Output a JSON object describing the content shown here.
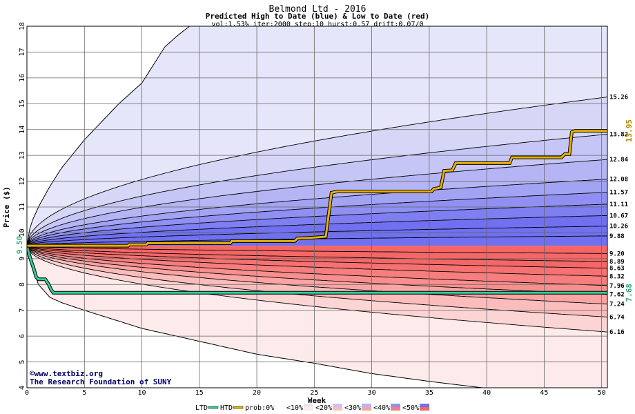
{
  "chart_data": {
    "type": "area",
    "title": "Belmond Ltd - 2016",
    "subtitle": "Predicted High to Date (blue) &  Low to Date (red)",
    "params": "vol:1.53% iter:2000 step:10 hurst:0.57 drift:0.07/0",
    "xlabel": "Week",
    "ylabel": "Price ($)",
    "xlim": [
      0,
      50.5
    ],
    "ylim": [
      4,
      18
    ],
    "x_ticks": [
      0,
      5,
      10,
      15,
      20,
      25,
      30,
      35,
      40,
      45,
      50
    ],
    "y_ticks": [
      4,
      5,
      6,
      7,
      8,
      9,
      10,
      11,
      12,
      13,
      14,
      15,
      16,
      17,
      18
    ],
    "grid": true,
    "start_price": 9.5,
    "start_label": "9.50",
    "high_outer": [
      [
        0,
        9.5
      ],
      [
        0.3,
        10.3
      ],
      [
        1,
        11.0
      ],
      [
        2,
        11.8
      ],
      [
        3,
        12.5
      ],
      [
        5,
        13.6
      ],
      [
        8,
        15.0
      ],
      [
        10,
        15.8
      ],
      [
        12,
        17.2
      ],
      [
        13,
        17.6
      ],
      [
        15,
        18.3
      ],
      [
        16,
        18.6
      ]
    ],
    "low_outer": [
      [
        0,
        9.5
      ],
      [
        0.3,
        8.9
      ],
      [
        1,
        8.0
      ],
      [
        2,
        7.5
      ],
      [
        3,
        7.3
      ],
      [
        5,
        7.0
      ],
      [
        10,
        6.3
      ],
      [
        15,
        5.8
      ],
      [
        20,
        5.3
      ],
      [
        25,
        4.95
      ],
      [
        30,
        4.55
      ],
      [
        35,
        4.25
      ],
      [
        40,
        3.98
      ],
      [
        43,
        3.88
      ]
    ],
    "high_quantiles": [
      {
        "label": "15.26",
        "value": 15.26
      },
      {
        "label": "13.82",
        "value": 13.82
      },
      {
        "label": "12.84",
        "value": 12.84
      },
      {
        "label": "12.08",
        "value": 12.08
      },
      {
        "label": "11.57",
        "value": 11.57
      },
      {
        "label": "11.11",
        "value": 11.11
      },
      {
        "label": "10.67",
        "value": 10.67
      },
      {
        "label": "10.26",
        "value": 10.26
      },
      {
        "label": "9.88",
        "value": 9.88
      }
    ],
    "low_quantiles": [
      {
        "label": "9.20",
        "value": 9.2
      },
      {
        "label": "8.89",
        "value": 8.89
      },
      {
        "label": "8.63",
        "value": 8.63
      },
      {
        "label": "8.32",
        "value": 8.32
      },
      {
        "label": "7.96",
        "value": 7.96
      },
      {
        "label": "7.62",
        "value": 7.62
      },
      {
        "label": "7.24",
        "value": 7.24
      },
      {
        "label": "6.74",
        "value": 6.74
      },
      {
        "label": "6.16",
        "value": 6.16
      }
    ],
    "high_band_colors": [
      "#e6e6fa",
      "#d6d6f7",
      "#c6c6f6",
      "#b5b5f5",
      "#a3a3f4",
      "#9090f3",
      "#7f7ff1",
      "#7070f0"
    ],
    "low_band_colors": [
      "#fdeaea",
      "#fcd4d4",
      "#fbbcbc",
      "#faa4a4",
      "#f98e8e",
      "#f77e7e",
      "#f67171",
      "#f46767"
    ],
    "htd_series": {
      "name": "HTD",
      "color": "#e8b000",
      "end_label": "13.95",
      "points": [
        [
          0,
          9.5
        ],
        [
          8.8,
          9.5
        ],
        [
          8.9,
          9.55
        ],
        [
          10.4,
          9.55
        ],
        [
          10.5,
          9.6
        ],
        [
          17.7,
          9.6
        ],
        [
          17.8,
          9.68
        ],
        [
          23.3,
          9.68
        ],
        [
          23.5,
          9.78
        ],
        [
          25,
          9.82
        ],
        [
          26,
          9.85
        ],
        [
          26.5,
          11.55
        ],
        [
          27,
          11.6
        ],
        [
          35.2,
          11.6
        ],
        [
          35.4,
          11.7
        ],
        [
          36,
          11.75
        ],
        [
          36.3,
          12.4
        ],
        [
          37,
          12.42
        ],
        [
          37.3,
          12.7
        ],
        [
          42,
          12.7
        ],
        [
          42.2,
          12.92
        ],
        [
          46.5,
          12.92
        ],
        [
          46.8,
          13.05
        ],
        [
          47.2,
          13.05
        ],
        [
          47.4,
          13.9
        ],
        [
          47.7,
          13.95
        ],
        [
          50.5,
          13.95
        ]
      ]
    },
    "ltd_series": {
      "name": "LTD",
      "color": "#33cc99",
      "end_label": "7.68",
      "points": [
        [
          0,
          9.5
        ],
        [
          0.3,
          9.0
        ],
        [
          0.6,
          8.6
        ],
        [
          0.8,
          8.3
        ],
        [
          1.0,
          8.2
        ],
        [
          1.6,
          8.2
        ],
        [
          1.9,
          8.0
        ],
        [
          2.1,
          7.8
        ],
        [
          2.3,
          7.68
        ],
        [
          50.5,
          7.68
        ]
      ]
    }
  },
  "watermark": {
    "site": "©www.textbiz.org",
    "org": "The Research Foundation of SUNY"
  },
  "legend": {
    "items": [
      {
        "label": "LTD",
        "type": "line",
        "color": "#33cc99"
      },
      {
        "label": "HTD",
        "type": "line",
        "color": "#e8b000"
      },
      {
        "label": "prob:0%",
        "type": "swatch",
        "colors": [
          "#ffffff",
          "#ffffff"
        ]
      },
      {
        "label": "<10%",
        "type": "swatch",
        "colors": [
          "#e6e6fa",
          "#fdeaea"
        ]
      },
      {
        "label": "<20%",
        "type": "swatch",
        "colors": [
          "#c6c6f6",
          "#fbbcbc"
        ]
      },
      {
        "label": "<30%",
        "type": "swatch",
        "colors": [
          "#b5b5f5",
          "#faa4a4"
        ]
      },
      {
        "label": "<40%",
        "type": "swatch",
        "colors": [
          "#9090f3",
          "#f77e7e"
        ]
      },
      {
        "label": "<50%",
        "type": "swatch",
        "colors": [
          "#7070f0",
          "#f46767"
        ]
      }
    ]
  }
}
